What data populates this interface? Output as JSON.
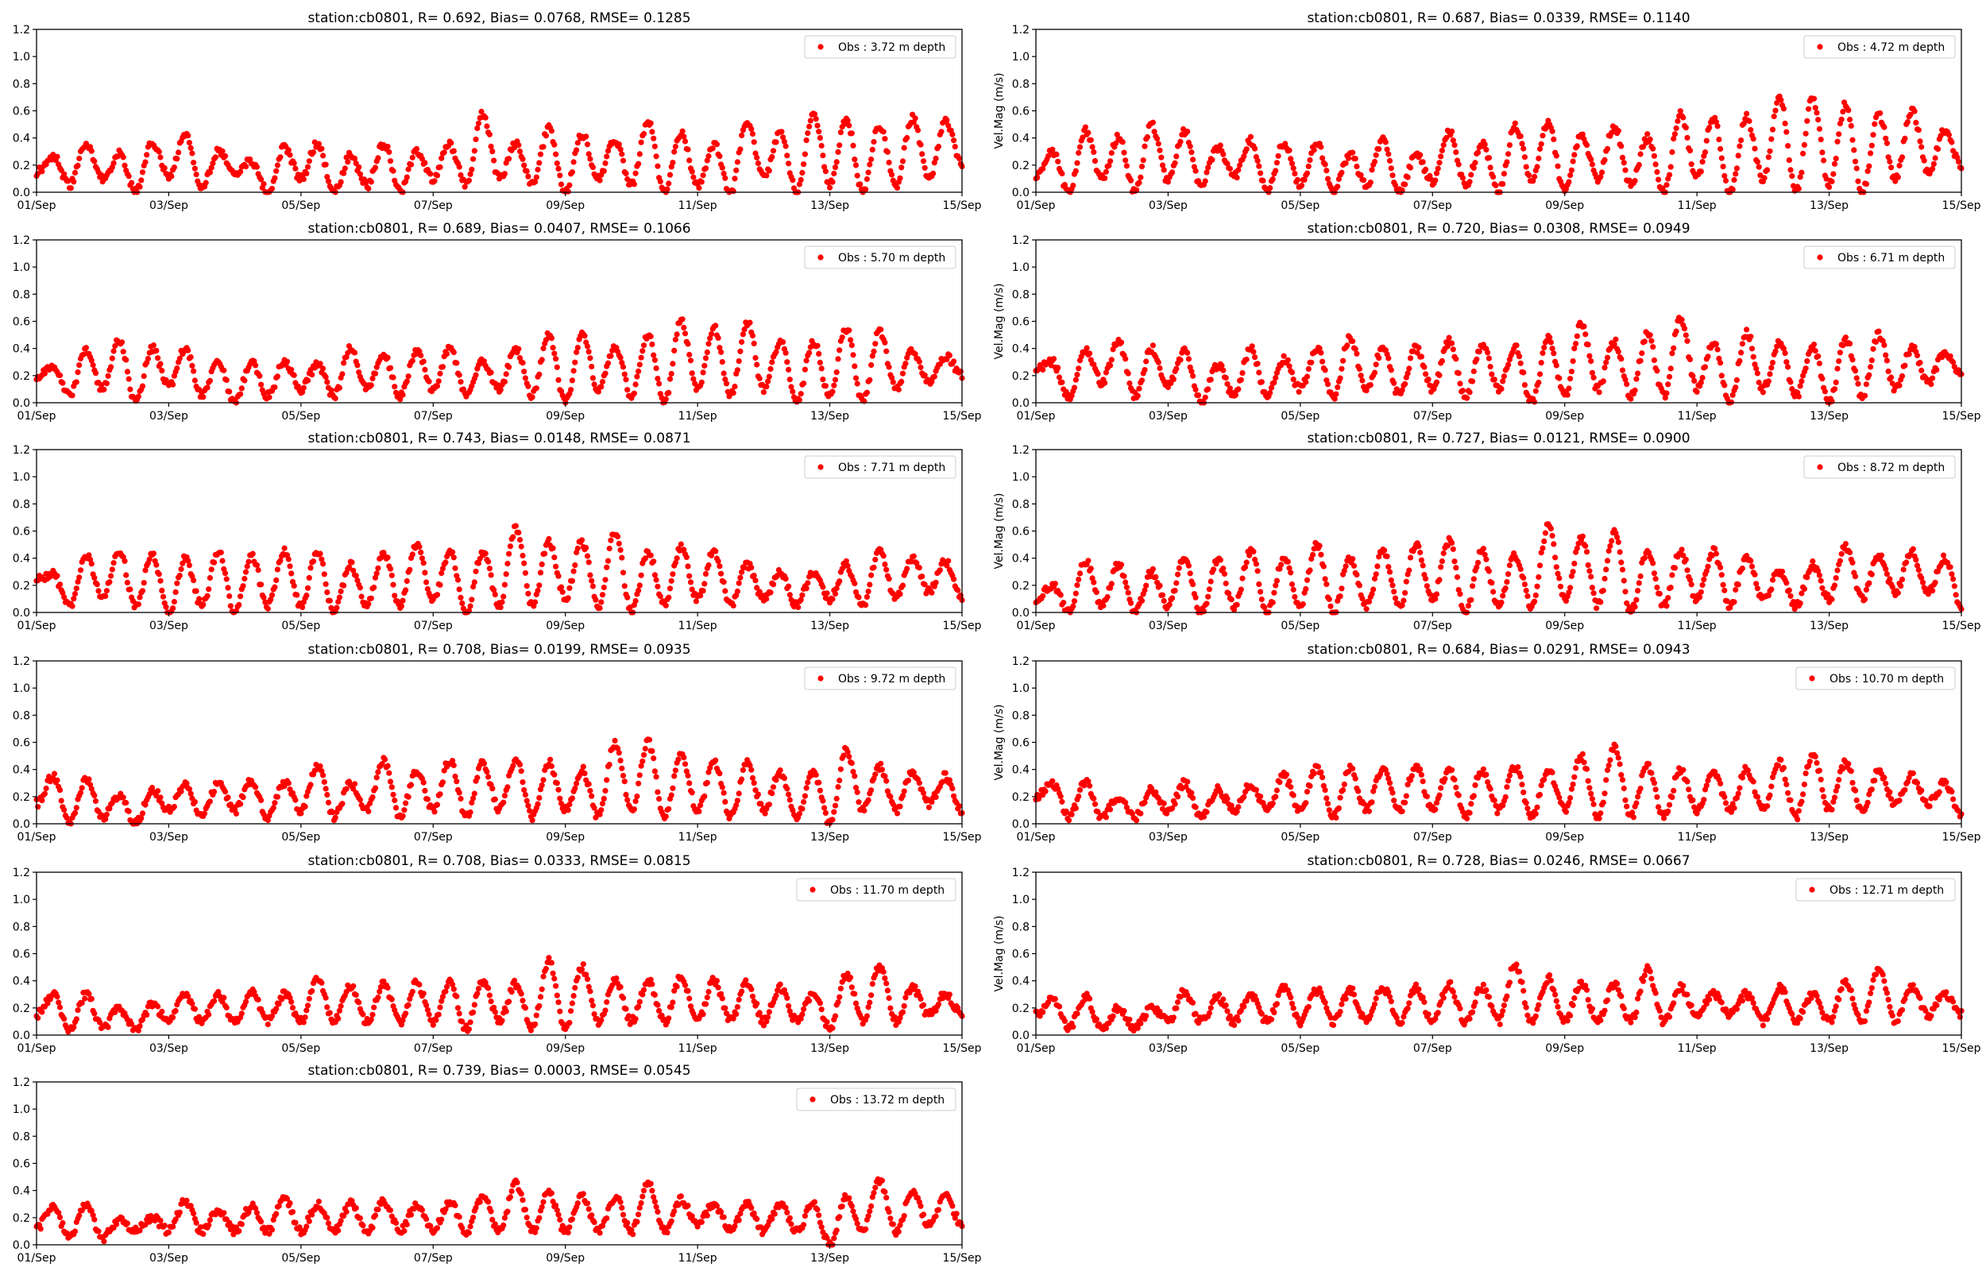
{
  "chart_data": [
    {
      "type": "scatter",
      "title": "station:cb0801, R= 0.692, Bias= 0.0768, RMSE= 0.1285",
      "legend": "Obs : 3.72 m depth",
      "ylabel": "",
      "peaks": [
        0.27,
        0.35,
        0.28,
        0.36,
        0.42,
        0.3,
        0.23,
        0.33,
        0.36,
        0.27,
        0.36,
        0.3,
        0.35,
        0.58,
        0.36,
        0.47,
        0.43,
        0.38,
        0.53,
        0.43,
        0.35,
        0.53,
        0.45,
        0.59,
        0.54,
        0.49,
        0.55,
        0.52
      ],
      "troughs": [
        0.15,
        0.05,
        0.1,
        0.0,
        0.12,
        0.05,
        0.15,
        0.0,
        0.1,
        0.0,
        0.05,
        0.0,
        0.1,
        0.05,
        0.1,
        0.05,
        0.0,
        0.1,
        0.05,
        0.0,
        0.05,
        0.0,
        0.1,
        0.0,
        0.05,
        0.0,
        0.05,
        0.1,
        0.2
      ]
    },
    {
      "type": "scatter",
      "title": "station:cb0801, R= 0.687, Bias= 0.0339, RMSE= 0.1140",
      "legend": "Obs : 4.72 m depth",
      "ylabel": "Vel.Mag (m/s)",
      "peaks": [
        0.3,
        0.45,
        0.4,
        0.5,
        0.45,
        0.33,
        0.38,
        0.36,
        0.36,
        0.28,
        0.39,
        0.28,
        0.45,
        0.36,
        0.49,
        0.51,
        0.42,
        0.49,
        0.4,
        0.58,
        0.54,
        0.55,
        0.71,
        0.69,
        0.65,
        0.57,
        0.6,
        0.45
      ],
      "troughs": [
        0.12,
        0.0,
        0.1,
        0.0,
        0.08,
        0.05,
        0.12,
        0.0,
        0.05,
        0.0,
        0.05,
        0.0,
        0.08,
        0.05,
        0.0,
        0.1,
        0.0,
        0.1,
        0.05,
        0.0,
        0.1,
        0.0,
        0.1,
        0.0,
        0.05,
        0.0,
        0.1,
        0.15,
        0.2
      ]
    },
    {
      "type": "scatter",
      "title": "station:cb0801, R= 0.689, Bias= 0.0407, RMSE= 0.1066",
      "legend": "Obs : 5.70 m depth",
      "ylabel": "",
      "peaks": [
        0.25,
        0.38,
        0.47,
        0.4,
        0.4,
        0.3,
        0.3,
        0.3,
        0.28,
        0.4,
        0.35,
        0.38,
        0.4,
        0.3,
        0.4,
        0.5,
        0.5,
        0.42,
        0.5,
        0.6,
        0.55,
        0.6,
        0.45,
        0.45,
        0.55,
        0.52,
        0.38,
        0.35
      ],
      "troughs": [
        0.2,
        0.05,
        0.1,
        0.0,
        0.12,
        0.05,
        0.0,
        0.05,
        0.1,
        0.05,
        0.1,
        0.05,
        0.1,
        0.05,
        0.1,
        0.05,
        0.0,
        0.1,
        0.05,
        0.0,
        0.1,
        0.05,
        0.1,
        0.0,
        0.05,
        0.0,
        0.1,
        0.15,
        0.2
      ]
    },
    {
      "type": "scatter",
      "title": "station:cb0801, R= 0.720, Bias= 0.0308, RMSE= 0.0949",
      "legend": "Obs : 6.71 m depth",
      "ylabel": "Vel.Mag (m/s)",
      "peaks": [
        0.3,
        0.4,
        0.45,
        0.4,
        0.38,
        0.28,
        0.4,
        0.32,
        0.4,
        0.48,
        0.4,
        0.4,
        0.45,
        0.42,
        0.4,
        0.48,
        0.58,
        0.45,
        0.5,
        0.62,
        0.45,
        0.52,
        0.45,
        0.42,
        0.47,
        0.5,
        0.4,
        0.38
      ],
      "troughs": [
        0.25,
        0.05,
        0.15,
        0.05,
        0.12,
        0.0,
        0.05,
        0.05,
        0.1,
        0.05,
        0.1,
        0.05,
        0.1,
        0.05,
        0.1,
        0.0,
        0.05,
        0.1,
        0.05,
        0.05,
        0.1,
        0.0,
        0.1,
        0.05,
        0.0,
        0.05,
        0.1,
        0.15,
        0.2
      ]
    },
    {
      "type": "scatter",
      "title": "station:cb0801, R= 0.743, Bias= 0.0148, RMSE= 0.0871",
      "legend": "Obs : 7.71 m depth",
      "ylabel": "",
      "peaks": [
        0.28,
        0.42,
        0.45,
        0.42,
        0.4,
        0.45,
        0.42,
        0.45,
        0.45,
        0.35,
        0.45,
        0.5,
        0.45,
        0.45,
        0.62,
        0.52,
        0.52,
        0.6,
        0.45,
        0.48,
        0.45,
        0.35,
        0.3,
        0.3,
        0.35,
        0.45,
        0.4,
        0.38
      ],
      "troughs": [
        0.25,
        0.05,
        0.1,
        0.05,
        0.0,
        0.05,
        0.0,
        0.05,
        0.05,
        0.0,
        0.05,
        0.05,
        0.1,
        0.0,
        0.05,
        0.05,
        0.1,
        0.05,
        0.0,
        0.05,
        0.1,
        0.05,
        0.1,
        0.05,
        0.1,
        0.05,
        0.1,
        0.15,
        0.1
      ]
    },
    {
      "type": "scatter",
      "title": "station:cb0801, R= 0.727, Bias= 0.0121, RMSE= 0.0900",
      "legend": "Obs : 8.72 m depth",
      "ylabel": "Vel.Mag (m/s)",
      "peaks": [
        0.2,
        0.38,
        0.35,
        0.3,
        0.4,
        0.38,
        0.45,
        0.4,
        0.5,
        0.4,
        0.45,
        0.5,
        0.52,
        0.45,
        0.42,
        0.63,
        0.55,
        0.58,
        0.45,
        0.45,
        0.45,
        0.4,
        0.3,
        0.35,
        0.48,
        0.42,
        0.45,
        0.4
      ],
      "troughs": [
        0.1,
        0.0,
        0.05,
        0.0,
        0.05,
        0.0,
        0.05,
        0.0,
        0.05,
        0.0,
        0.05,
        0.05,
        0.1,
        0.0,
        0.05,
        0.05,
        0.1,
        0.05,
        0.0,
        0.05,
        0.1,
        0.05,
        0.1,
        0.05,
        0.1,
        0.1,
        0.15,
        0.15,
        0.05
      ]
    },
    {
      "type": "scatter",
      "title": "station:cb0801, R= 0.708, Bias= 0.0199, RMSE= 0.0935",
      "legend": "Obs : 9.72 m depth",
      "ylabel": "",
      "peaks": [
        0.35,
        0.32,
        0.2,
        0.25,
        0.28,
        0.3,
        0.32,
        0.3,
        0.43,
        0.3,
        0.47,
        0.4,
        0.47,
        0.45,
        0.47,
        0.45,
        0.4,
        0.6,
        0.6,
        0.5,
        0.45,
        0.45,
        0.38,
        0.38,
        0.55,
        0.42,
        0.38,
        0.35
      ],
      "troughs": [
        0.15,
        0.0,
        0.05,
        0.0,
        0.1,
        0.05,
        0.1,
        0.05,
        0.1,
        0.05,
        0.1,
        0.05,
        0.1,
        0.05,
        0.1,
        0.05,
        0.1,
        0.05,
        0.1,
        0.05,
        0.1,
        0.05,
        0.1,
        0.05,
        0.0,
        0.1,
        0.1,
        0.15,
        0.1
      ]
    },
    {
      "type": "scatter",
      "title": "station:cb0801, R= 0.684, Bias= 0.0291, RMSE= 0.0943",
      "legend": "Obs : 10.70 m depth",
      "ylabel": "Vel.Mag (m/s)",
      "peaks": [
        0.3,
        0.3,
        0.2,
        0.25,
        0.3,
        0.25,
        0.3,
        0.35,
        0.42,
        0.4,
        0.4,
        0.42,
        0.4,
        0.4,
        0.42,
        0.4,
        0.5,
        0.57,
        0.42,
        0.4,
        0.38,
        0.4,
        0.45,
        0.52,
        0.45,
        0.38,
        0.35,
        0.3
      ],
      "troughs": [
        0.2,
        0.05,
        0.05,
        0.05,
        0.1,
        0.05,
        0.1,
        0.1,
        0.1,
        0.05,
        0.1,
        0.1,
        0.1,
        0.05,
        0.1,
        0.05,
        0.1,
        0.05,
        0.05,
        0.05,
        0.1,
        0.1,
        0.1,
        0.05,
        0.1,
        0.1,
        0.15,
        0.15,
        0.05
      ]
    },
    {
      "type": "scatter",
      "title": "station:cb0801, R= 0.708, Bias= 0.0333, RMSE= 0.0815",
      "legend": "Obs : 11.70 m depth",
      "ylabel": "",
      "peaks": [
        0.3,
        0.3,
        0.2,
        0.22,
        0.3,
        0.3,
        0.33,
        0.3,
        0.42,
        0.36,
        0.37,
        0.38,
        0.38,
        0.4,
        0.38,
        0.55,
        0.5,
        0.4,
        0.4,
        0.43,
        0.4,
        0.38,
        0.35,
        0.3,
        0.45,
        0.5,
        0.35,
        0.3
      ],
      "troughs": [
        0.15,
        0.05,
        0.05,
        0.05,
        0.1,
        0.1,
        0.1,
        0.1,
        0.1,
        0.1,
        0.1,
        0.1,
        0.1,
        0.05,
        0.1,
        0.05,
        0.05,
        0.1,
        0.1,
        0.1,
        0.1,
        0.1,
        0.1,
        0.1,
        0.05,
        0.1,
        0.1,
        0.15,
        0.15
      ]
    },
    {
      "type": "scatter",
      "title": "station:cb0801, R= 0.728, Bias= 0.0246, RMSE= 0.0667",
      "legend": "Obs : 12.71 m depth",
      "ylabel": "Vel.Mag (m/s)",
      "peaks": [
        0.28,
        0.28,
        0.2,
        0.2,
        0.32,
        0.28,
        0.3,
        0.35,
        0.33,
        0.33,
        0.35,
        0.35,
        0.37,
        0.35,
        0.52,
        0.42,
        0.38,
        0.38,
        0.48,
        0.35,
        0.3,
        0.3,
        0.35,
        0.3,
        0.4,
        0.48,
        0.35,
        0.3
      ],
      "troughs": [
        0.15,
        0.05,
        0.05,
        0.05,
        0.1,
        0.1,
        0.1,
        0.1,
        0.1,
        0.1,
        0.1,
        0.1,
        0.1,
        0.1,
        0.1,
        0.1,
        0.1,
        0.1,
        0.1,
        0.1,
        0.15,
        0.15,
        0.1,
        0.1,
        0.1,
        0.1,
        0.1,
        0.15,
        0.15
      ]
    },
    {
      "type": "scatter",
      "title": "station:cb0801, R= 0.739, Bias= 0.0003, RMSE= 0.0545",
      "legend": "Obs : 13.72 m depth",
      "ylabel": "",
      "peaks": [
        0.28,
        0.3,
        0.18,
        0.2,
        0.32,
        0.25,
        0.28,
        0.35,
        0.3,
        0.3,
        0.32,
        0.3,
        0.32,
        0.35,
        0.45,
        0.38,
        0.36,
        0.35,
        0.45,
        0.33,
        0.3,
        0.3,
        0.3,
        0.3,
        0.35,
        0.48,
        0.38,
        0.35
      ],
      "troughs": [
        0.12,
        0.05,
        0.05,
        0.1,
        0.1,
        0.1,
        0.1,
        0.1,
        0.1,
        0.1,
        0.1,
        0.1,
        0.1,
        0.1,
        0.1,
        0.1,
        0.1,
        0.1,
        0.1,
        0.1,
        0.15,
        0.1,
        0.1,
        0.1,
        0.0,
        0.1,
        0.1,
        0.15,
        0.15
      ]
    }
  ],
  "axes": {
    "ylim": [
      0,
      1.2
    ],
    "yticks": [
      "0.0",
      "0.2",
      "0.4",
      "0.6",
      "0.8",
      "1.0",
      "1.2"
    ],
    "xticks": [
      "01/Sep",
      "03/Sep",
      "05/Sep",
      "07/Sep",
      "09/Sep",
      "11/Sep",
      "13/Sep",
      "15/Sep"
    ],
    "x_range_hours": [
      0,
      336
    ],
    "sample_step_hours": 6
  },
  "colors": {
    "obs": "#ff0000",
    "axis": "#000000",
    "legend_border": "#cccccc"
  }
}
